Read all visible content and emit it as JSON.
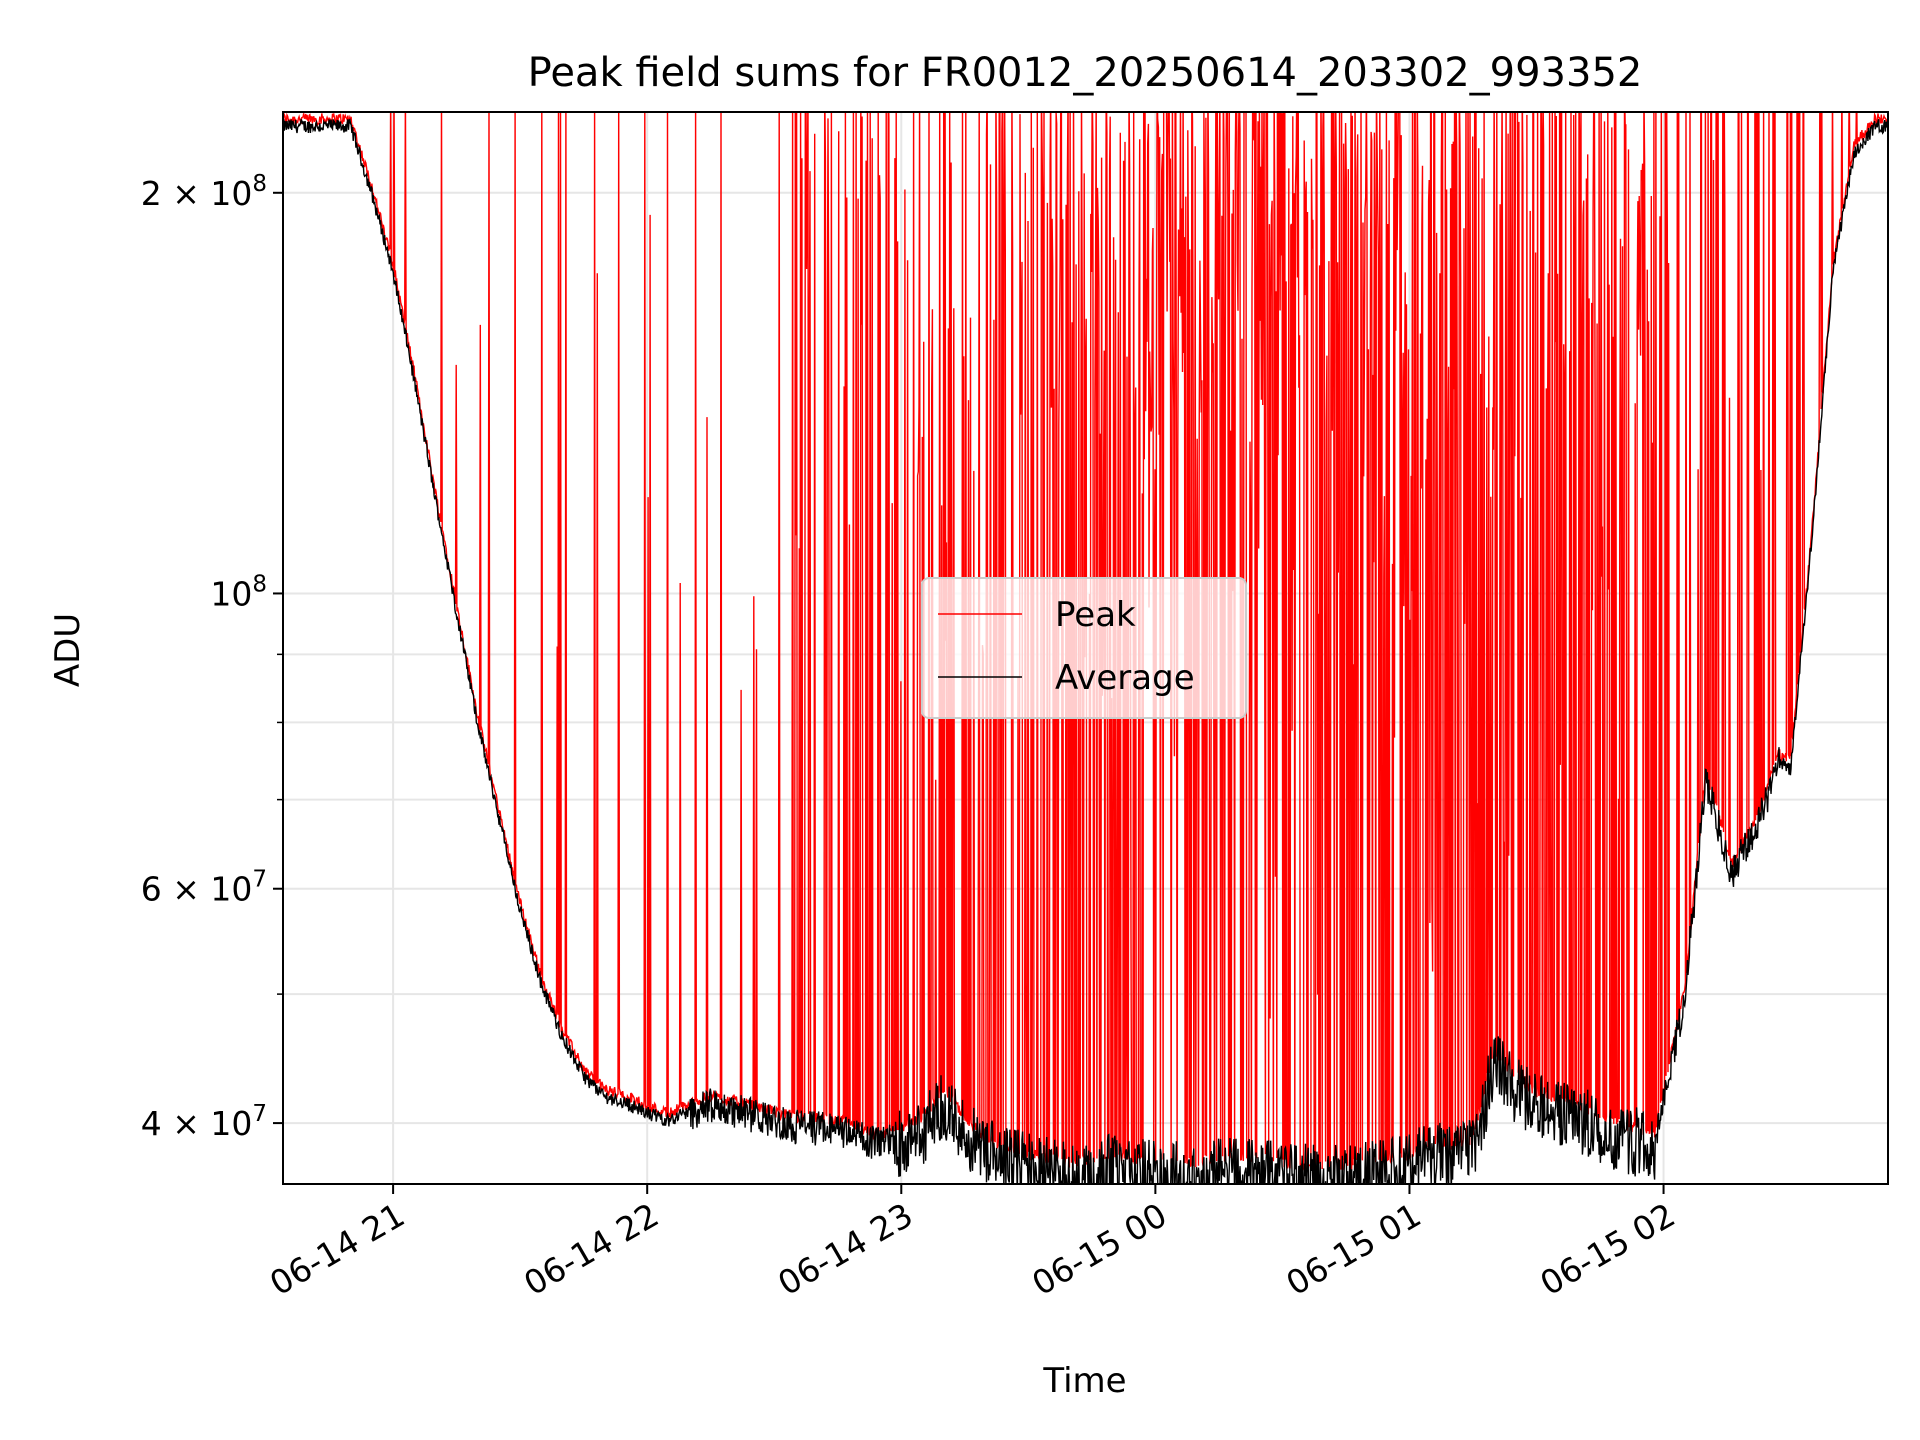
{
  "chart_data": {
    "type": "line",
    "title": "Peak field sums for FR0012_20250614_203302_993352",
    "xlabel": "Time",
    "ylabel": "ADU",
    "yscale": "log",
    "xlim": [
      "2025-06-14 20:34",
      "2025-06-15 02:53"
    ],
    "ylim": [
      36000000,
      230000000
    ],
    "grid": true,
    "legend": "center",
    "x_ticks": [
      {
        "value": "2025-06-14 21:00",
        "label": "06-14 21"
      },
      {
        "value": "2025-06-14 22:00",
        "label": "06-14 22"
      },
      {
        "value": "2025-06-14 23:00",
        "label": "06-14 23"
      },
      {
        "value": "2025-06-15 00:00",
        "label": "06-15 00"
      },
      {
        "value": "2025-06-15 01:00",
        "label": "06-15 01"
      },
      {
        "value": "2025-06-15 02:00",
        "label": "06-15 02"
      }
    ],
    "y_ticks": [
      {
        "value": 40000000,
        "label": "4 × 10",
        "exp": "7"
      },
      {
        "value": 60000000,
        "label": "6 × 10",
        "exp": "7"
      },
      {
        "value": 100000000,
        "label": "10",
        "exp": "8"
      },
      {
        "value": 200000000,
        "label": "2 × 10",
        "exp": "8"
      }
    ],
    "series": [
      {
        "name": "Average",
        "color": "#000000",
        "x": [
          "2025-06-14 20:34",
          "2025-06-14 20:50",
          "2025-06-14 20:55",
          "2025-06-14 21:00",
          "2025-06-14 21:05",
          "2025-06-14 21:10",
          "2025-06-14 21:15",
          "2025-06-14 21:20",
          "2025-06-14 21:25",
          "2025-06-14 21:30",
          "2025-06-14 21:35",
          "2025-06-14 21:40",
          "2025-06-14 21:45",
          "2025-06-14 21:50",
          "2025-06-14 21:55",
          "2025-06-14 22:00",
          "2025-06-14 22:05",
          "2025-06-14 22:08",
          "2025-06-14 22:15",
          "2025-06-14 22:25",
          "2025-06-14 22:35",
          "2025-06-14 22:45",
          "2025-06-14 22:55",
          "2025-06-14 23:00",
          "2025-06-14 23:05",
          "2025-06-14 23:10",
          "2025-06-14 23:15",
          "2025-06-14 23:20",
          "2025-06-14 23:30",
          "2025-06-14 23:40",
          "2025-06-14 23:50",
          "2025-06-15 00:00",
          "2025-06-15 00:10",
          "2025-06-15 00:20",
          "2025-06-15 00:30",
          "2025-06-15 00:40",
          "2025-06-15 00:50",
          "2025-06-15 01:00",
          "2025-06-15 01:05",
          "2025-06-15 01:10",
          "2025-06-15 01:15",
          "2025-06-15 01:20",
          "2025-06-15 01:25",
          "2025-06-15 01:30",
          "2025-06-15 01:40",
          "2025-06-15 01:50",
          "2025-06-15 01:58",
          "2025-06-15 02:05",
          "2025-06-15 02:10",
          "2025-06-15 02:16",
          "2025-06-15 02:22",
          "2025-06-15 02:27",
          "2025-06-15 02:30",
          "2025-06-15 02:35",
          "2025-06-15 02:40",
          "2025-06-15 02:45",
          "2025-06-15 02:50",
          "2025-06-15 02:53"
        ],
        "y": [
          225000000,
          225000000,
          200000000,
          175000000,
          145000000,
          118000000,
          97000000,
          80000000,
          68000000,
          58000000,
          51000000,
          46500000,
          43500000,
          42000000,
          41500000,
          40800000,
          40300000,
          40700000,
          41500000,
          40800000,
          40000000,
          39800000,
          38800000,
          39300000,
          40000000,
          42000000,
          40000000,
          38500000,
          37500000,
          37000000,
          37500000,
          37000000,
          37000000,
          37500000,
          37000000,
          36700000,
          37000000,
          37500000,
          38500000,
          38000000,
          38500000,
          45000000,
          43000000,
          41800000,
          40800000,
          39500000,
          39000000,
          50000000,
          73000000,
          62000000,
          67000000,
          75000000,
          74000000,
          110000000,
          175000000,
          215000000,
          225000000,
          225000000
        ]
      },
      {
        "name": "Peak",
        "color": "#ff0000",
        "x": [],
        "y": []
      }
    ]
  }
}
